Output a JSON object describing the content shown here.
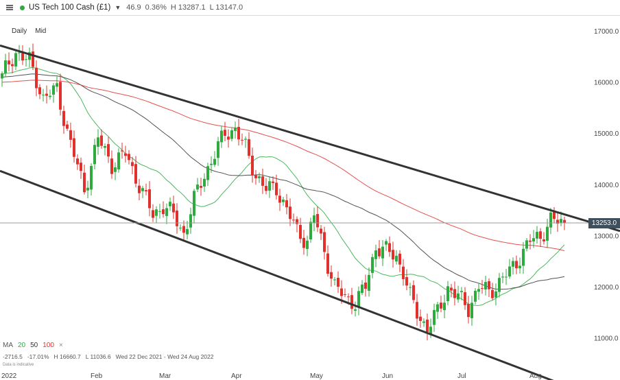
{
  "header": {
    "instrument": "US Tech 100 Cash (£1)",
    "change": "46.9",
    "change_pct": "0.36%",
    "high": "H 13287.1",
    "low": "L 13147.0",
    "status_color": "#2eaa3f"
  },
  "controls": {
    "interval": "Daily",
    "price_type": "Mid"
  },
  "legend": {
    "label": "MA",
    "ma1": "20",
    "ma2": "50",
    "ma3": "100",
    "ma1_color": "#2eaa3f",
    "ma2_color": "#333333",
    "ma3_color": "#e0312d"
  },
  "stats": {
    "change": "-2716.5",
    "change_pct": "-17.01%",
    "high": "H 16660.7",
    "low": "L 11036.6",
    "range": "Wed 22 Dec 2021 - Wed 24 Aug 2022"
  },
  "disclaimer": "Data is indicative",
  "price_tag": "13253.0",
  "chart_data": {
    "type": "candlestick",
    "ylim": [
      10400,
      17300
    ],
    "yticks": [
      "11000.0",
      "12000.0",
      "13000.0",
      "14000.0",
      "15000.0",
      "16000.0",
      "17000.0"
    ],
    "ytick_values": [
      11000,
      12000,
      13000,
      14000,
      15000,
      16000,
      17000
    ],
    "xticks": [
      "2022",
      "Feb",
      "Mar",
      "Apr",
      "May",
      "Jun",
      "Jul",
      "Aug"
    ],
    "xtick_index": [
      0,
      27,
      47,
      68,
      91,
      112,
      134,
      155
    ],
    "n_days": 165,
    "current_price": 13253.0,
    "up_color": "#2eaa3f",
    "down_color": "#e0312d",
    "anchors": [
      [
        0,
        16100
      ],
      [
        4,
        16600
      ],
      [
        8,
        16400
      ],
      [
        12,
        15700
      ],
      [
        16,
        15850
      ],
      [
        20,
        14800
      ],
      [
        24,
        13900
      ],
      [
        28,
        14900
      ],
      [
        32,
        14400
      ],
      [
        36,
        14600
      ],
      [
        40,
        14000
      ],
      [
        44,
        13400
      ],
      [
        47,
        13600
      ],
      [
        50,
        13400
      ],
      [
        53,
        13050
      ],
      [
        56,
        13700
      ],
      [
        59,
        14200
      ],
      [
        62,
        14600
      ],
      [
        65,
        15000
      ],
      [
        68,
        15100
      ],
      [
        71,
        14700
      ],
      [
        74,
        14200
      ],
      [
        77,
        13900
      ],
      [
        80,
        13950
      ],
      [
        83,
        13500
      ],
      [
        86,
        13100
      ],
      [
        89,
        12900
      ],
      [
        91,
        13400
      ],
      [
        94,
        12700
      ],
      [
        97,
        12000
      ],
      [
        100,
        11800
      ],
      [
        103,
        11700
      ],
      [
        106,
        12000
      ],
      [
        109,
        12800
      ],
      [
        112,
        12700
      ],
      [
        115,
        12600
      ],
      [
        117,
        12300
      ],
      [
        119,
        11800
      ],
      [
        121,
        11500
      ],
      [
        124,
        11200
      ],
      [
        127,
        11500
      ],
      [
        130,
        12000
      ],
      [
        133,
        11800
      ],
      [
        136,
        11600
      ],
      [
        139,
        12000
      ],
      [
        142,
        11900
      ],
      [
        145,
        12100
      ],
      [
        148,
        12300
      ],
      [
        151,
        12600
      ],
      [
        154,
        12900
      ],
      [
        157,
        13000
      ],
      [
        160,
        13300
      ],
      [
        164,
        13253
      ]
    ],
    "channel": {
      "upper": [
        [
          0,
          16720
        ],
        [
          164,
          13230
        ]
      ],
      "lower": [
        [
          0,
          14270
        ],
        [
          164,
          10000
        ]
      ]
    },
    "ma_params": [
      20,
      50,
      100
    ]
  }
}
